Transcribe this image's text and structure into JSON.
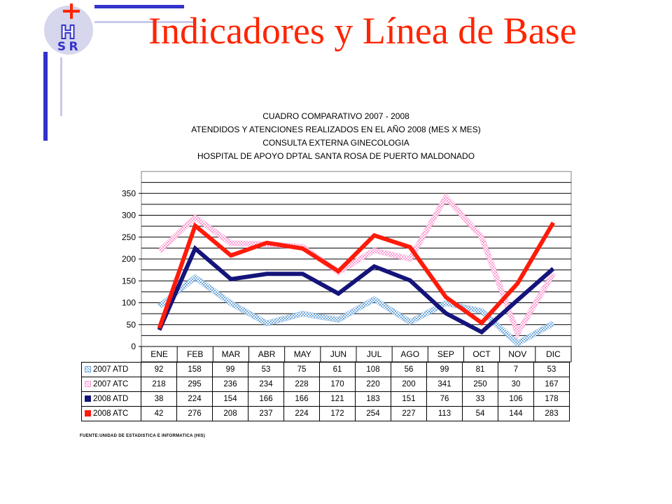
{
  "slide": {
    "title": "Indicadores y Línea de Base",
    "logo_text": [
      "H",
      "S",
      "R"
    ],
    "source": "FUENTE:UNIDAD DE ESTADISTICA E INFORMATICA (HIS)"
  },
  "colors": {
    "title": "#ff2400",
    "logo_bar": "#3333cc",
    "logo_circle": "#d6d6ec",
    "logo_cross": "#ff2400",
    "series_2007_atd": "#6fa8dc",
    "series_2007_atc": "#ff9ad1",
    "series_2008_atd": "#14147a",
    "series_2008_atc": "#ff1a0a"
  },
  "chart_data": {
    "type": "line",
    "title": [
      "CUADRO COMPARATIVO 2007 - 2008",
      "ATENDIDOS Y ATENCIONES  REALIZADOS EN  EL AÑO 2008 (MES X MES)",
      "CONSULTA EXTERNA GINECOLOGIA",
      "HOSPITAL DE APOYO DPTAL SANTA ROSA DE PUERTO MALDONADO"
    ],
    "categories": [
      "ENE",
      "FEB",
      "MAR",
      "ABR",
      "MAY",
      "JUN",
      "JUL",
      "AGO",
      "SEP",
      "OCT",
      "NOV",
      "DIC"
    ],
    "y_ticks": [
      0,
      50,
      100,
      150,
      200,
      250,
      300,
      350
    ],
    "ylim": [
      0,
      400
    ],
    "grid": true,
    "legend": "table-below",
    "series": [
      {
        "name": "2007 ATD",
        "values": [
          92,
          158,
          99,
          53,
          75,
          61,
          108,
          56,
          99,
          81,
          7,
          53
        ],
        "color": "#6fa8dc",
        "style": "hatched"
      },
      {
        "name": "2007 ATC",
        "values": [
          218,
          295,
          236,
          234,
          228,
          170,
          220,
          200,
          341,
          250,
          30,
          167
        ],
        "color": "#ff9ad1",
        "style": "hatched"
      },
      {
        "name": "2008 ATD",
        "values": [
          38,
          224,
          154,
          166,
          166,
          121,
          183,
          151,
          76,
          33,
          106,
          178
        ],
        "color": "#14147a",
        "style": "solid"
      },
      {
        "name": "2008 ATC",
        "values": [
          42,
          276,
          208,
          237,
          224,
          172,
          254,
          227,
          113,
          54,
          144,
          283
        ],
        "color": "#ff1a0a",
        "style": "solid"
      }
    ]
  }
}
